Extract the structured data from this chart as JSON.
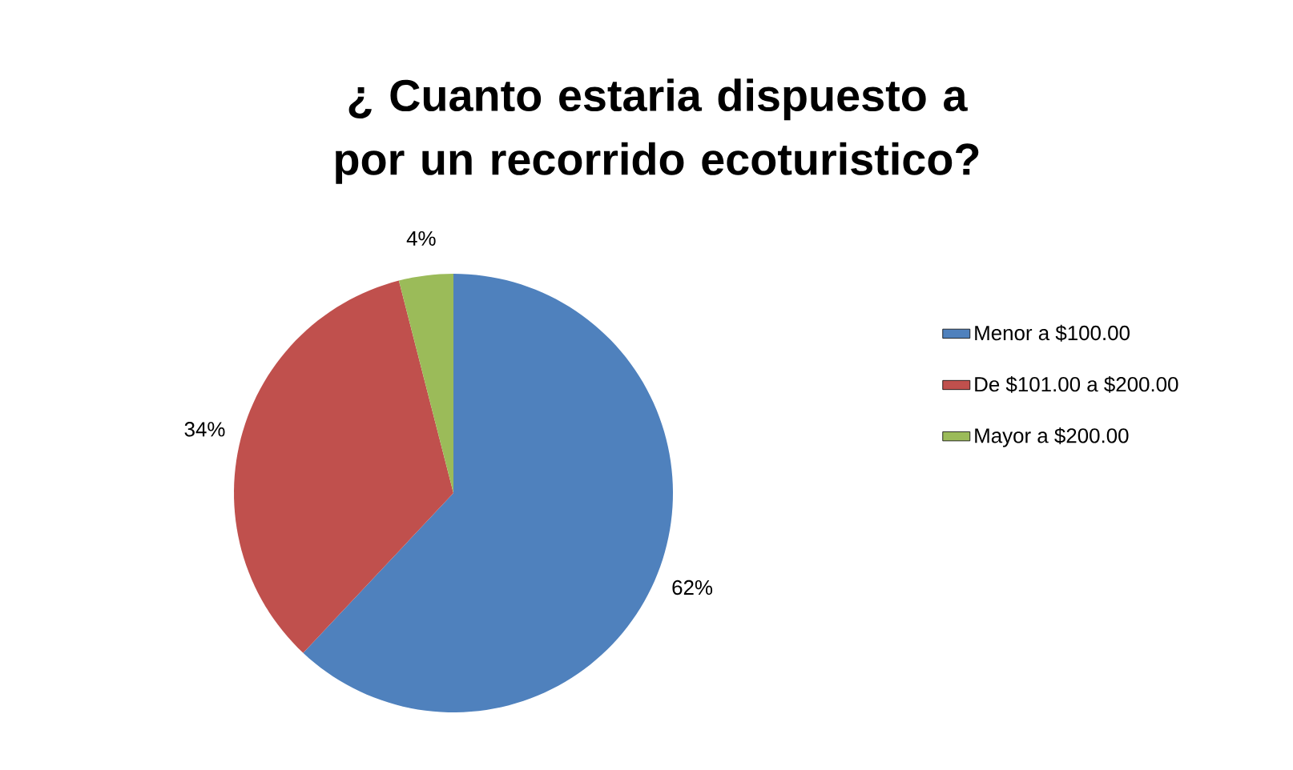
{
  "chart_data": {
    "type": "pie",
    "title": "¿ Cuanto estaria dispuesto a por un recorrido ecoturistico?",
    "categories": [
      "Menor a $100.00",
      "De $101.00 a $200.00",
      "Mayor a $200.00"
    ],
    "values": [
      62,
      34,
      4
    ],
    "colors": [
      "#4f81bd",
      "#c0504d",
      "#9bbb59"
    ],
    "value_labels": [
      "62%",
      "34%",
      "4%"
    ],
    "legend": "right"
  }
}
